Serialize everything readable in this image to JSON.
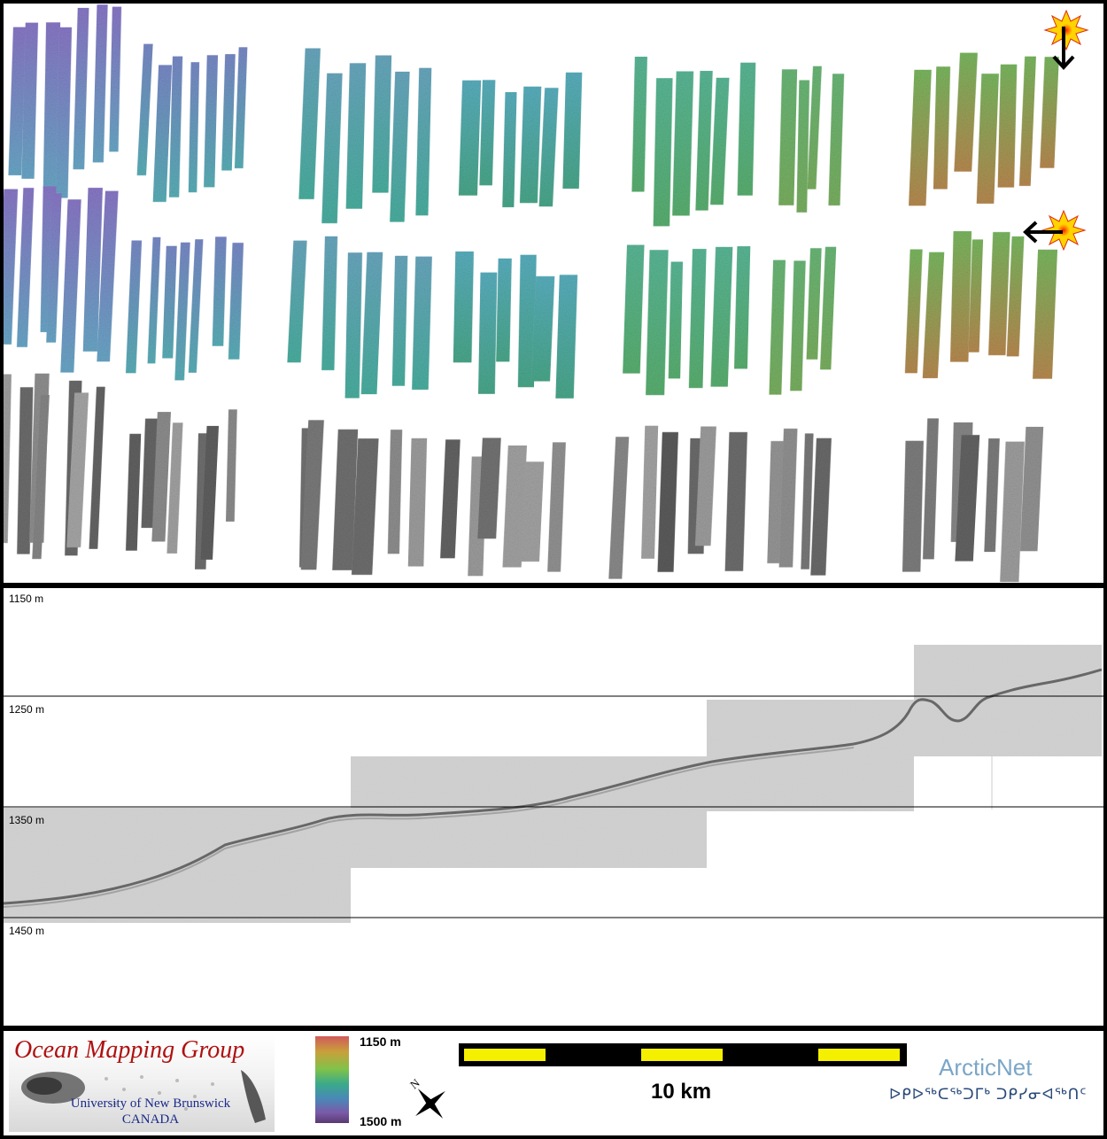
{
  "profile": {
    "depth_labels": [
      "1150 m",
      "1250 m",
      "1350 m",
      "1450 m"
    ]
  },
  "legend": {
    "organization_title": "Ocean Mapping Group",
    "university_line1": "University of New Brunswick",
    "university_line2": "CANADA",
    "colorbar_top": "1150 m",
    "colorbar_bottom": "1500 m",
    "north_label": "N",
    "scale_text": "10 km",
    "arcticnet_name": "ArcticNet",
    "arcticnet_syllabics": "ᐅᑭᐅᖅᑕᖅᑐᒥᒃ ᑐᑭᓯᓂᐊᖅᑎᑦ"
  },
  "colors": {
    "title_red": "#b01010",
    "unb_blue": "#1a2a8a",
    "scale_yellow": "#f5f000",
    "arcticnet_blue": "#7aa6c8",
    "sun_yellow": "#ffd400",
    "sun_red": "#e03010"
  },
  "icons": [
    "sun-icon",
    "arrow-down-icon",
    "arrow-left-icon",
    "north-arrow-icon"
  ]
}
